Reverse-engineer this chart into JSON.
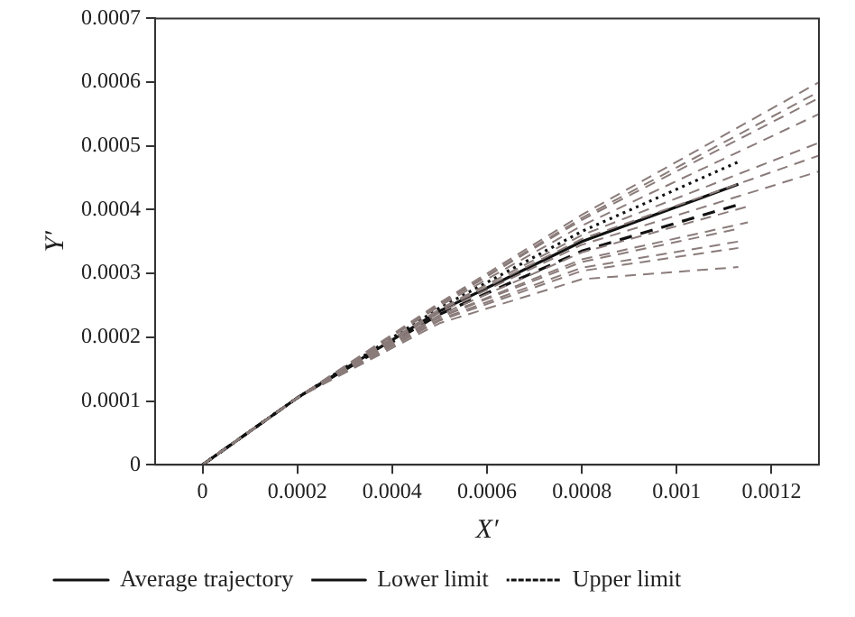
{
  "chart_data": {
    "type": "line",
    "xlabel": "X′",
    "ylabel": "Y′",
    "xlim": [
      -0.0001,
      0.0013
    ],
    "ylim": [
      0,
      0.0007
    ],
    "xticks": [
      0,
      0.0002,
      0.0004,
      0.0006,
      0.0008,
      0.001,
      0.0012
    ],
    "yticks": [
      0,
      0.0001,
      0.0002,
      0.0003,
      0.0004,
      0.0005,
      0.0006,
      0.0007
    ],
    "grid": false,
    "legend": "bottom left",
    "marker": "none",
    "series": [
      {
        "color": "#8a7c7a",
        "line_style": "dashed",
        "x": [
          0,
          0.0002,
          0.0005,
          0.0008,
          0.0013
        ],
        "values": [
          0,
          0.000105,
          0.000254,
          0.000392,
          0.0006
        ]
      },
      {
        "color": "#8a7c7a",
        "line_style": "dashed",
        "x": [
          0,
          0.0002,
          0.0005,
          0.0008,
          0.0013
        ],
        "values": [
          0,
          0.000105,
          0.000252,
          0.000387,
          0.000585
        ]
      },
      {
        "color": "#8a7c7a",
        "line_style": "dashed",
        "x": [
          0,
          0.0002,
          0.0005,
          0.0008,
          0.0013
        ],
        "values": [
          0,
          0.000105,
          0.000251,
          0.000384,
          0.000575
        ]
      },
      {
        "color": "#8a7c7a",
        "line_style": "dashed",
        "x": [
          0,
          0.0002,
          0.0005,
          0.0008,
          0.0013
        ],
        "values": [
          0,
          0.000105,
          0.000249,
          0.000375,
          0.00055
        ]
      },
      {
        "color": "#8a7c7a",
        "line_style": "dashed",
        "x": [
          0,
          0.0002,
          0.0005,
          0.0008,
          0.0013
        ],
        "values": [
          0,
          0.000105,
          0.000244,
          0.00036,
          0.000505
        ]
      },
      {
        "color": "#8a7c7a",
        "line_style": "dashed",
        "x": [
          0,
          0.0002,
          0.0005,
          0.0008,
          0.0013
        ],
        "values": [
          0,
          0.000105,
          0.000242,
          0.000354,
          0.000485
        ]
      },
      {
        "color": "#8a7c7a",
        "line_style": "dashed",
        "x": [
          0,
          0.0002,
          0.0005,
          0.0008,
          0.0013
        ],
        "values": [
          0,
          0.000105,
          0.000239,
          0.000345,
          0.00046
        ]
      },
      {
        "color": "#8a7c7a",
        "line_style": "dashed",
        "x": [
          0,
          0.0002,
          0.0005,
          0.0008,
          0.00115
        ],
        "values": [
          0,
          0.000105,
          0.000235,
          0.000333,
          0.000405
        ]
      },
      {
        "color": "#8a7c7a",
        "line_style": "dashed",
        "x": [
          0,
          0.0002,
          0.0005,
          0.0008,
          0.00115
        ],
        "values": [
          0,
          0.000105,
          0.000232,
          0.000322,
          0.00038
        ]
      },
      {
        "color": "#8a7c7a",
        "line_style": "dashed",
        "x": [
          0,
          0.0002,
          0.0005,
          0.0008,
          0.00113
        ],
        "values": [
          0,
          0.000105,
          0.000231,
          0.000318,
          0.00037
        ]
      },
      {
        "color": "#8a7c7a",
        "line_style": "dashed",
        "x": [
          0,
          0.0002,
          0.0005,
          0.0008,
          0.00113
        ],
        "values": [
          0,
          0.000105,
          0.000228,
          0.000309,
          0.00035
        ]
      },
      {
        "color": "#8a7c7a",
        "line_style": "dashed",
        "x": [
          0,
          0.0002,
          0.0005,
          0.0008,
          0.00113
        ],
        "values": [
          0,
          0.000105,
          0.000226,
          0.000304,
          0.00034
        ]
      },
      {
        "color": "#8a7c7a",
        "line_style": "dashed",
        "x": [
          0,
          0.0002,
          0.0005,
          0.0008,
          0.00113
        ],
        "values": [
          0,
          0.000105,
          0.000222,
          0.000291,
          0.00031
        ]
      },
      {
        "name": "Average trajectory",
        "color": "#111111",
        "line_style": "solid",
        "x": [
          0,
          0.0002,
          0.0005,
          0.0008,
          0.00113
        ],
        "values": [
          0,
          0.000105,
          0.000241,
          0.00035,
          0.00044
        ]
      },
      {
        "name": "Lower limit",
        "color": "#111111",
        "line_style": "dashed",
        "x": [
          0,
          0.0002,
          0.0005,
          0.0008,
          0.00113
        ],
        "values": [
          0,
          0.000105,
          0.000236,
          0.000335,
          0.000408
        ]
      },
      {
        "name": "Upper limit",
        "color": "#111111",
        "line_style": "dotted",
        "x": [
          0,
          0.0002,
          0.0005,
          0.0008,
          0.00113
        ],
        "values": [
          0,
          0.000105,
          0.000246,
          0.000366,
          0.000475
        ]
      }
    ]
  }
}
